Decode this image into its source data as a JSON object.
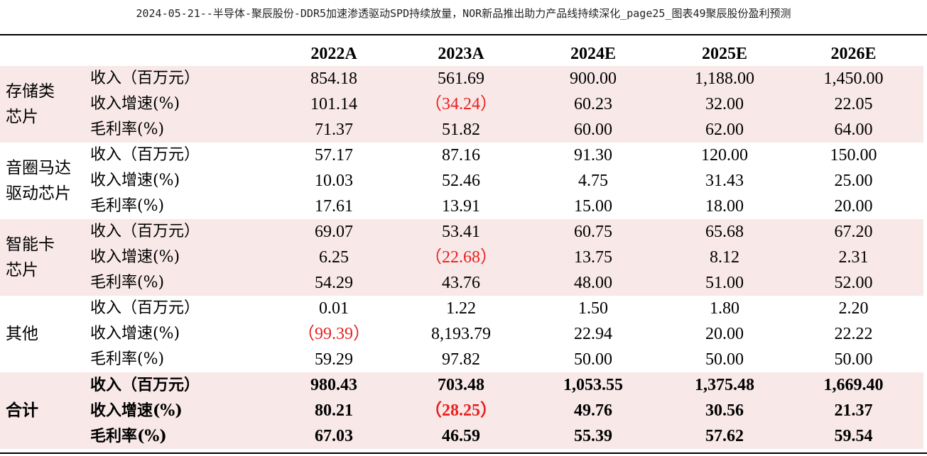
{
  "title": "2024-05-21--半导体-聚辰股份-DDR5加速渗透驱动SPD持续放量，NOR新品推出助力产品线持续深化_page25_图表49聚辰股份盈利预测",
  "columns": [
    "2022A",
    "2023A",
    "2024E",
    "2025E",
    "2026E"
  ],
  "segments": [
    {
      "name_lines": [
        "存储类",
        "芯片"
      ],
      "rows": [
        {
          "metric": "收入（百万元）",
          "values": [
            "854.18",
            "561.69",
            "900.00",
            "1,188.00",
            "1,450.00"
          ]
        },
        {
          "metric": "收入增速(%)",
          "values": [
            "101.14",
            "（34.24）",
            "60.23",
            "32.00",
            "22.05"
          ]
        },
        {
          "metric": "毛利率(%)",
          "values": [
            "71.37",
            "51.82",
            "60.00",
            "62.00",
            "64.00"
          ]
        }
      ]
    },
    {
      "name_lines": [
        "音圈马达",
        "驱动芯片"
      ],
      "rows": [
        {
          "metric": "收入（百万元）",
          "values": [
            "57.17",
            "87.16",
            "91.30",
            "120.00",
            "150.00"
          ]
        },
        {
          "metric": "收入增速(%)",
          "values": [
            "10.03",
            "52.46",
            "4.75",
            "31.43",
            "25.00"
          ]
        },
        {
          "metric": "毛利率(%)",
          "values": [
            "17.61",
            "13.91",
            "15.00",
            "18.00",
            "20.00"
          ]
        }
      ]
    },
    {
      "name_lines": [
        "智能卡",
        "芯片"
      ],
      "rows": [
        {
          "metric": "收入（百万元）",
          "values": [
            "69.07",
            "53.41",
            "60.75",
            "65.68",
            "67.20"
          ]
        },
        {
          "metric": "收入增速(%)",
          "values": [
            "6.25",
            "（22.68）",
            "13.75",
            "8.12",
            "2.31"
          ]
        },
        {
          "metric": "毛利率(%)",
          "values": [
            "54.29",
            "43.76",
            "48.00",
            "51.00",
            "52.00"
          ]
        }
      ]
    },
    {
      "name_lines": [
        "其他"
      ],
      "rows": [
        {
          "metric": "收入（百万元）",
          "values": [
            "0.01",
            "1.22",
            "1.50",
            "1.80",
            "2.20"
          ]
        },
        {
          "metric": "收入增速(%)",
          "values": [
            "（99.39）",
            "8,193.79",
            "22.94",
            "20.00",
            "22.22"
          ]
        },
        {
          "metric": "毛利率(%)",
          "values": [
            "59.29",
            "97.82",
            "50.00",
            "50.00",
            "50.00"
          ]
        }
      ]
    },
    {
      "name_lines": [
        "合计"
      ],
      "rows": [
        {
          "metric": "收入（百万元）",
          "values": [
            "980.43",
            "703.48",
            "1,053.55",
            "1,375.48",
            "1,669.40"
          ]
        },
        {
          "metric": "收入增速(%)",
          "values": [
            "80.21",
            "（28.25）",
            "49.76",
            "30.56",
            "21.37"
          ]
        },
        {
          "metric": "毛利率(%)",
          "values": [
            "67.03",
            "46.59",
            "55.39",
            "57.62",
            "59.54"
          ]
        }
      ]
    }
  ],
  "colors": {
    "shade": "#f8e8e8",
    "negative": "#e8201f"
  }
}
